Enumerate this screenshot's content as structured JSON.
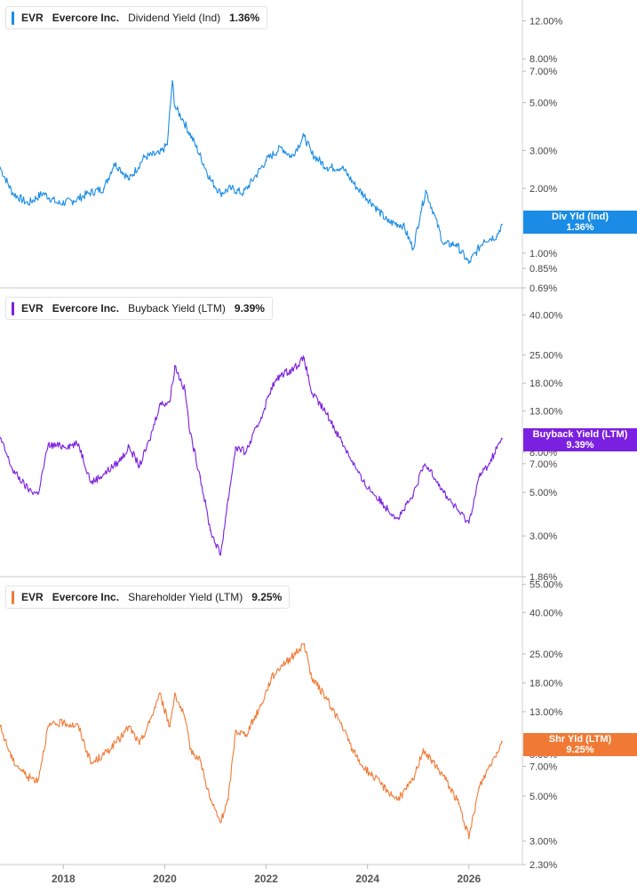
{
  "panels": [
    {
      "ticker": "EVR",
      "company": "Evercore Inc.",
      "metric": "Dividend Yield (Ind)",
      "value": "1.36%",
      "tag_line1": "Div Yld (Ind)",
      "tag_line2": "1.36%",
      "color": "#1a8ce6"
    },
    {
      "ticker": "EVR",
      "company": "Evercore Inc.",
      "metric": "Buyback Yield (LTM)",
      "value": "9.39%",
      "tag_line1": "Buyback Yield (LTM)",
      "tag_line2": "9.39%",
      "color": "#7b1fe0"
    },
    {
      "ticker": "EVR",
      "company": "Evercore Inc.",
      "metric": "Shareholder Yield (LTM)",
      "value": "9.25%",
      "tag_line1": "Shr Yld (LTM)",
      "tag_line2": "9.25%",
      "color": "#f07a35"
    }
  ],
  "chart_data": [
    {
      "type": "line",
      "title": "EVR Evercore Inc. Dividend Yield (Ind) 1.36%",
      "y_scale": "log",
      "y_ticks": [
        "12.00%",
        "8.00%",
        "7.00%",
        "5.00%",
        "3.00%",
        "2.00%",
        "1.00%",
        "0.85%",
        "0.69%"
      ],
      "ylim": [
        0.69,
        15.0
      ],
      "series": [
        {
          "name": "Div Yld (Ind)",
          "color": "#1a8ce6",
          "x": [
            2016.75,
            2017.0,
            2017.3,
            2017.6,
            2017.9,
            2018.2,
            2018.5,
            2018.8,
            2019.0,
            2019.1,
            2019.3,
            2019.6,
            2019.9,
            2020.05,
            2020.15,
            2020.2,
            2020.35,
            2020.6,
            2020.9,
            2021.1,
            2021.3,
            2021.55,
            2021.8,
            2022.0,
            2022.3,
            2022.5,
            2022.75,
            2022.9,
            2023.2,
            2023.5,
            2023.8,
            2024.1,
            2024.4,
            2024.7,
            2024.9,
            2025.05,
            2025.15,
            2025.3,
            2025.5,
            2025.75,
            2026.0,
            2026.3,
            2026.55,
            2026.65
          ],
          "y": [
            2.5,
            1.9,
            1.7,
            1.9,
            1.7,
            1.75,
            1.9,
            2.0,
            2.6,
            2.5,
            2.2,
            2.8,
            2.9,
            3.2,
            6.3,
            4.8,
            4.2,
            3.2,
            2.2,
            1.9,
            2.0,
            1.9,
            2.3,
            2.7,
            3.1,
            2.8,
            3.5,
            2.9,
            2.5,
            2.5,
            2.0,
            1.7,
            1.4,
            1.35,
            1.05,
            1.55,
            1.95,
            1.55,
            1.1,
            1.1,
            0.9,
            1.15,
            1.2,
            1.36
          ]
        }
      ]
    },
    {
      "type": "line",
      "title": "EVR Evercore Inc. Buyback Yield (LTM) 9.39%",
      "y_scale": "log",
      "y_ticks": [
        "40.00%",
        "25.00%",
        "18.00%",
        "13.00%",
        "8.00%",
        "7.00%",
        "5.00%",
        "3.00%",
        "1.86%"
      ],
      "ylim": [
        1.86,
        55.0
      ],
      "series": [
        {
          "name": "Buyback Yield (LTM)",
          "color": "#7b1fe0",
          "x": [
            2016.75,
            2017.0,
            2017.3,
            2017.5,
            2017.7,
            2018.0,
            2018.3,
            2018.55,
            2018.8,
            2019.1,
            2019.3,
            2019.5,
            2019.7,
            2019.9,
            2020.1,
            2020.2,
            2020.4,
            2020.5,
            2020.7,
            2020.9,
            2021.1,
            2021.25,
            2021.4,
            2021.6,
            2021.9,
            2022.1,
            2022.3,
            2022.5,
            2022.75,
            2022.9,
            2023.2,
            2023.5,
            2023.7,
            2023.9,
            2024.1,
            2024.4,
            2024.6,
            2024.9,
            2025.1,
            2025.25,
            2025.5,
            2025.8,
            2026.0,
            2026.2,
            2026.4,
            2026.55,
            2026.65
          ],
          "y": [
            9.5,
            6.5,
            5.2,
            4.9,
            8.7,
            8.6,
            8.8,
            5.6,
            6.2,
            7.2,
            8.5,
            6.8,
            9.2,
            14.0,
            14.5,
            22.0,
            16.5,
            10.0,
            6.0,
            3.2,
            2.4,
            4.6,
            8.5,
            8.0,
            12.0,
            17.0,
            20.0,
            21.0,
            24.0,
            16.0,
            12.5,
            9.0,
            7.2,
            5.7,
            5.0,
            4.1,
            3.7,
            4.8,
            6.8,
            6.5,
            5.0,
            4.0,
            3.5,
            6.0,
            7.0,
            8.4,
            9.39
          ]
        }
      ]
    },
    {
      "type": "line",
      "title": "EVR Evercore Inc. Shareholder Yield (LTM) 9.25%",
      "y_scale": "log",
      "y_ticks": [
        "55.00%",
        "40.00%",
        "25.00%",
        "18.00%",
        "13.00%",
        "8.00%",
        "7.00%",
        "5.00%",
        "3.00%",
        "2.30%"
      ],
      "ylim": [
        2.3,
        60.0
      ],
      "series": [
        {
          "name": "Shr Yld (LTM)",
          "color": "#f07a35",
          "x": [
            2016.75,
            2017.0,
            2017.3,
            2017.5,
            2017.7,
            2018.0,
            2018.3,
            2018.55,
            2018.8,
            2019.1,
            2019.3,
            2019.5,
            2019.7,
            2019.9,
            2020.1,
            2020.2,
            2020.4,
            2020.5,
            2020.7,
            2020.9,
            2021.1,
            2021.25,
            2021.4,
            2021.6,
            2021.9,
            2022.1,
            2022.3,
            2022.5,
            2022.75,
            2022.9,
            2023.2,
            2023.5,
            2023.7,
            2023.9,
            2024.1,
            2024.4,
            2024.6,
            2024.9,
            2025.1,
            2025.25,
            2025.5,
            2025.8,
            2026.0,
            2026.2,
            2026.4,
            2026.55,
            2026.65
          ],
          "y": [
            11.0,
            7.5,
            6.2,
            6.0,
            11.0,
            11.5,
            11.0,
            7.2,
            8.0,
            9.5,
            11.0,
            9.0,
            11.5,
            16.0,
            11.0,
            16.0,
            12.0,
            8.5,
            7.5,
            4.8,
            3.7,
            4.8,
            10.5,
            10.0,
            14.0,
            19.0,
            22.0,
            24.0,
            28.0,
            19.0,
            15.0,
            11.0,
            8.5,
            7.0,
            6.3,
            5.3,
            4.8,
            6.0,
            8.5,
            7.5,
            6.3,
            4.6,
            3.1,
            5.5,
            7.0,
            8.2,
            9.25
          ]
        }
      ]
    }
  ],
  "x_axis": {
    "ticks": [
      2018,
      2020,
      2022,
      2024,
      2026
    ],
    "tick_labels": [
      "2018",
      "2020",
      "2022",
      "2024",
      "2026"
    ],
    "range": [
      2016.75,
      2026.95
    ]
  }
}
